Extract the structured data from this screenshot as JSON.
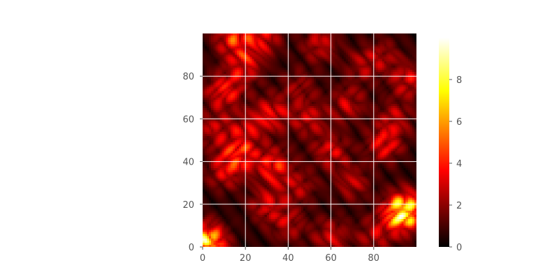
{
  "chart_data": {
    "type": "heatmap",
    "title": "",
    "xlabel": "",
    "ylabel": "",
    "colormap": "hot",
    "grid": true,
    "grid_color": "#ffffff",
    "xlim": [
      0,
      100
    ],
    "ylim": [
      0,
      100
    ],
    "x_ticks": [
      0,
      20,
      40,
      60,
      80
    ],
    "y_ticks": [
      0,
      20,
      40,
      60,
      80
    ],
    "colorbar": {
      "range": [
        0,
        10
      ],
      "ticks": [
        0,
        2,
        4,
        6,
        8
      ]
    },
    "hotspots": [
      {
        "x": 2,
        "y": 2,
        "value": 9.6
      },
      {
        "x": 95,
        "y": 18,
        "value": 6.8
      },
      {
        "x": 92,
        "y": 14,
        "value": 5.0
      },
      {
        "x": 17,
        "y": 43,
        "value": 4.4
      },
      {
        "x": 33,
        "y": 38,
        "value": 4.5
      },
      {
        "x": 10,
        "y": 73,
        "value": 4.5
      },
      {
        "x": 32,
        "y": 62,
        "value": 4.0
      },
      {
        "x": 14,
        "y": 98,
        "value": 4.6
      },
      {
        "x": 28,
        "y": 98,
        "value": 3.8
      },
      {
        "x": 20,
        "y": 85,
        "value": 3.6
      },
      {
        "x": 55,
        "y": 95,
        "value": 3.2
      },
      {
        "x": 50,
        "y": 60,
        "value": 3.0
      },
      {
        "x": 85,
        "y": 48,
        "value": 3.8
      },
      {
        "x": 68,
        "y": 67,
        "value": 3.0
      },
      {
        "x": 96,
        "y": 78,
        "value": 3.5
      },
      {
        "x": 60,
        "y": 45,
        "value": 3.3
      },
      {
        "x": 70,
        "y": 30,
        "value": 2.8
      },
      {
        "x": 30,
        "y": 20,
        "value": 3.2
      },
      {
        "x": 60,
        "y": 5,
        "value": 3.2
      },
      {
        "x": 10,
        "y": 35,
        "value": 3.0
      },
      {
        "x": 5,
        "y": 55,
        "value": 2.8
      },
      {
        "x": 45,
        "y": 28,
        "value": 2.5
      },
      {
        "x": 80,
        "y": 5,
        "value": 2.6
      },
      {
        "x": 40,
        "y": 10,
        "value": 2.6
      },
      {
        "x": 90,
        "y": 60,
        "value": 2.8
      },
      {
        "x": 45,
        "y": 75,
        "value": 2.2
      },
      {
        "x": 20,
        "y": 55,
        "value": 2.6
      },
      {
        "x": 75,
        "y": 85,
        "value": 2.4
      },
      {
        "x": 85,
        "y": 90,
        "value": 2.0
      }
    ]
  }
}
